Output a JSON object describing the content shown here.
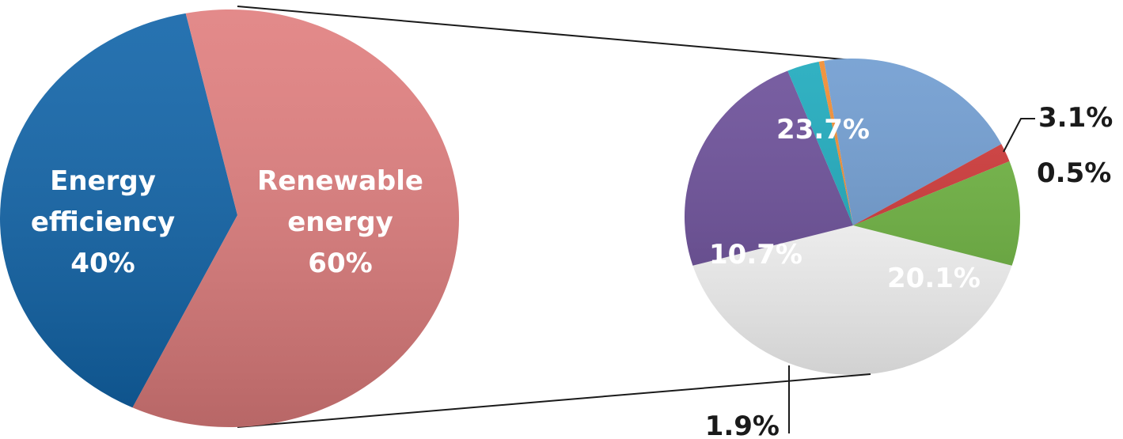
{
  "chart_data": [
    {
      "type": "pie",
      "slices": [
        {
          "label_lines": [
            "Energy",
            "efficiency"
          ],
          "value": 40,
          "value_label": "40%",
          "color": "#0f63a8"
        },
        {
          "label_lines": [
            "Renewable",
            "energy"
          ],
          "value": 60,
          "value_label": "60%",
          "color": "#e07d7d"
        }
      ]
    },
    {
      "type": "pie",
      "slices": [
        {
          "value": 23.7,
          "value_label": "23.7%",
          "color": "#6a4d98"
        },
        {
          "value": 3.1,
          "value_label": "3.1%",
          "color": "#1ba9bc"
        },
        {
          "value": 0.5,
          "value_label": "0.5%",
          "color": "#f08a2e"
        },
        {
          "value": 20.1,
          "value_label": "20.1%",
          "color": "#6e9bd0"
        },
        {
          "value": 1.9,
          "value_label": "1.9%",
          "color": "#cf3636"
        },
        {
          "value": 10.7,
          "value_label": "10.7%",
          "color": "#6db33f"
        }
      ]
    }
  ]
}
